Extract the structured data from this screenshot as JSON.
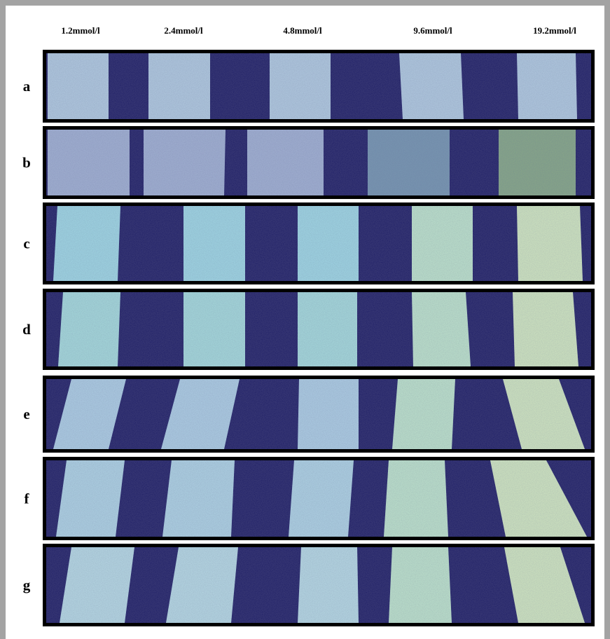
{
  "column_labels": [
    "1.2mmol/l",
    "2.4mmol/l",
    "4.8mmol/l",
    "9.6mmol/l",
    "19.2mmol/l"
  ],
  "row_labels": [
    "a",
    "b",
    "c",
    "d",
    "e",
    "f",
    "g"
  ]
}
